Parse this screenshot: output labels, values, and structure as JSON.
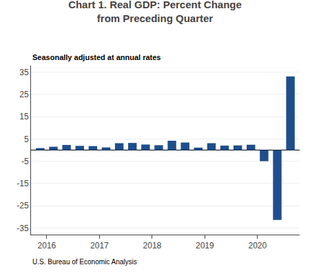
{
  "chart_data": {
    "type": "bar",
    "title": "Chart 1. Real GDP: Percent Change\nfrom Preceding Quarter",
    "subtitle": "Seasonally adjusted at annual rates",
    "annotations": [
      "U.S. Bureau of Economic Analysis"
    ],
    "categories": [
      null,
      "2016",
      null,
      null,
      null,
      "2017",
      null,
      null,
      null,
      "2018",
      null,
      null,
      null,
      "2019",
      null,
      null,
      null,
      "2020",
      null,
      null
    ],
    "values": [
      0.9,
      1.5,
      2.3,
      1.9,
      1.8,
      1.2,
      3.1,
      3.2,
      2.5,
      2.2,
      4.2,
      3.4,
      1.1,
      3.1,
      2.0,
      2.1,
      2.4,
      -5.0,
      -31.4,
      33.1
    ],
    "color": "#1F4E8C",
    "ylim": [
      -38,
      38
    ],
    "yticks": [
      -35,
      -25,
      -15,
      -5,
      5,
      15,
      25,
      35
    ],
    "grid": true
  }
}
